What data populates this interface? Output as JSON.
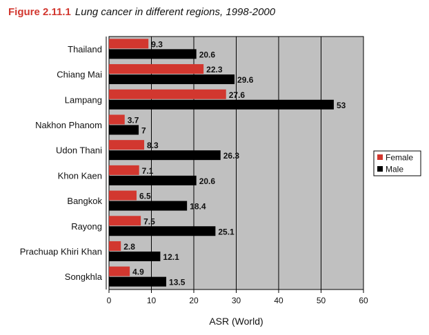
{
  "figure": {
    "number": "Figure 2.11.1",
    "caption": "Lung cancer in different regions, 1998-2000"
  },
  "chart_data": {
    "type": "bar",
    "orientation": "horizontal",
    "title": "Figure 2.11.1 Lung cancer in different regions, 1998-2000",
    "xlabel": "ASR (World)",
    "ylabel": "",
    "xlim": [
      0,
      60
    ],
    "xticks": [
      0,
      10,
      20,
      30,
      40,
      50,
      60
    ],
    "grid": "vertical",
    "legend_position": "right",
    "categories": [
      "Thailand",
      "Chiang Mai",
      "Lampang",
      "Nakhon Phanom",
      "Udon Thani",
      "Khon Kaen",
      "Bangkok",
      "Rayong",
      "Prachuap Khiri Khan",
      "Songkhla"
    ],
    "series": [
      {
        "name": "Female",
        "color": "#d2372f",
        "values": [
          9.3,
          22.3,
          27.6,
          3.7,
          8.3,
          7.1,
          6.5,
          7.5,
          2.8,
          4.9
        ]
      },
      {
        "name": "Male",
        "color": "#000000",
        "values": [
          20.6,
          29.6,
          53,
          7,
          26.3,
          20.6,
          18.4,
          25.1,
          12.1,
          13.5
        ]
      }
    ],
    "plot_background": "#c0c0c0"
  }
}
